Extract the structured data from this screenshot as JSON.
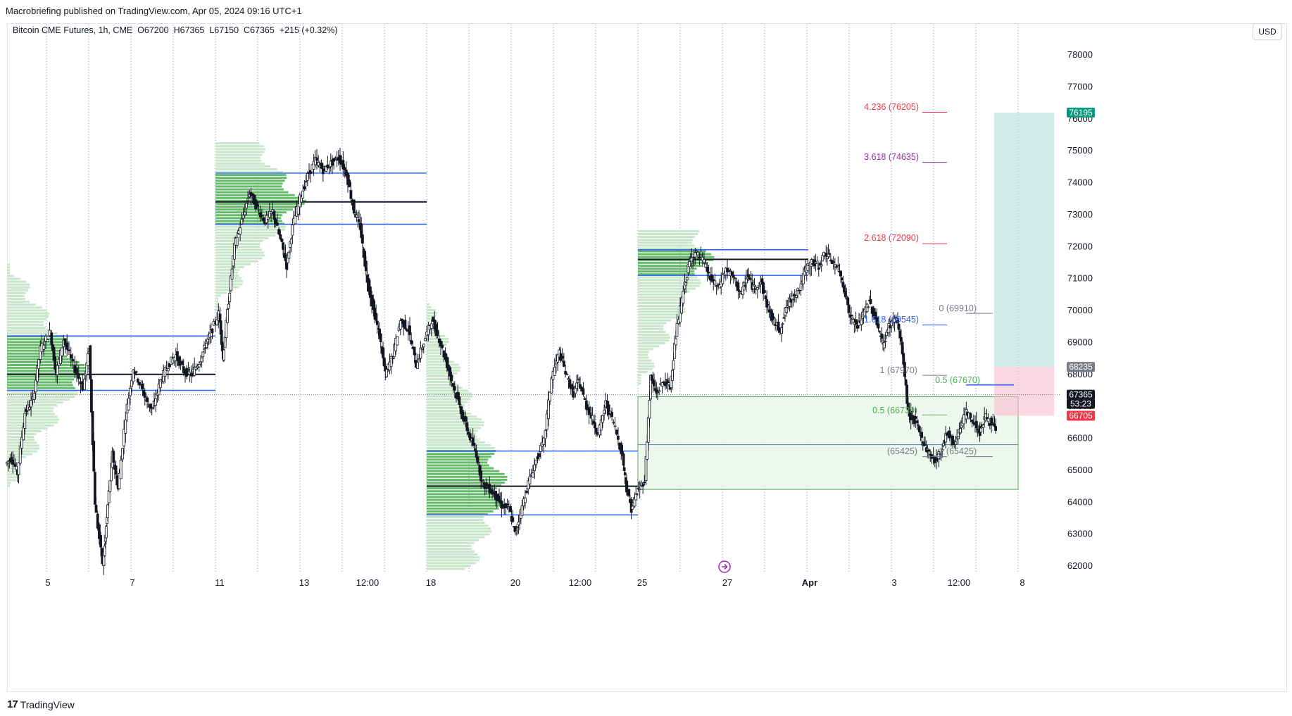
{
  "header": {
    "publisher": "Macrobriefing published on TradingView.com, Apr 05, 2024 09:16 UTC+1"
  },
  "legend": {
    "symbol": "Bitcoin CME Futures, 1h, CME",
    "open": "O67200",
    "high": "H67365",
    "low": "L67150",
    "close": "C67365",
    "change": "+215 (+0.32%)"
  },
  "currency_button": "USD",
  "footer": {
    "brand": "TradingView",
    "logo_mark": "17"
  },
  "colors": {
    "candle": "#131722",
    "vah_val": "#2962ff",
    "poc": "#131722",
    "profile_strong": "#66bb6a",
    "profile_weak": "#c8e6c9",
    "long_profit": "#b2dfdb",
    "long_loss": "#f8bbd0",
    "fib_red": "#f23645",
    "fib_purple": "#9c27b0",
    "fib_blue": "#2962ff",
    "fib_grey": "#787b86",
    "fib_green": "#4caf50"
  },
  "chart_data": {
    "type": "candlestick",
    "title": "",
    "xlabel": "",
    "ylabel": "",
    "ylim": [
      61800,
      79000
    ],
    "y_ticks": [
      62000,
      63000,
      64000,
      65000,
      66000,
      67000,
      68000,
      69000,
      70000,
      71000,
      72000,
      73000,
      74000,
      75000,
      76000,
      77000,
      78000
    ],
    "x_ticks": [
      "5",
      "7",
      "11",
      "13",
      "12:00",
      "18",
      "20",
      "12:00",
      "25",
      "27",
      "Apr",
      "3",
      "12:00",
      "8"
    ],
    "price_path": [
      [
        0,
        65200
      ],
      [
        0.3,
        65400
      ],
      [
        0.6,
        64900
      ],
      [
        1,
        66800
      ],
      [
        1.4,
        67200
      ],
      [
        1.8,
        68800
      ],
      [
        2.3,
        69300
      ],
      [
        2.6,
        68000
      ],
      [
        3,
        69100
      ],
      [
        3.5,
        68300
      ],
      [
        4,
        67600
      ],
      [
        4.3,
        68800
      ],
      [
        4.6,
        64000
      ],
      [
        5,
        62100
      ],
      [
        5.2,
        63500
      ],
      [
        5.5,
        65500
      ],
      [
        5.8,
        64400
      ],
      [
        6.2,
        66700
      ],
      [
        6.6,
        68200
      ],
      [
        7,
        67600
      ],
      [
        7.3,
        67100
      ],
      [
        7.6,
        66900
      ],
      [
        8,
        67800
      ],
      [
        8.4,
        68300
      ],
      [
        8.8,
        68600
      ],
      [
        9.2,
        68100
      ],
      [
        9.6,
        68000
      ],
      [
        10,
        68400
      ],
      [
        10.3,
        68900
      ],
      [
        10.6,
        69300
      ],
      [
        11,
        69900
      ],
      [
        11.2,
        68500
      ],
      [
        11.5,
        70300
      ],
      [
        11.8,
        72000
      ],
      [
        12.2,
        72800
      ],
      [
        12.6,
        73700
      ],
      [
        13,
        73200
      ],
      [
        13.4,
        72800
      ],
      [
        13.8,
        73100
      ],
      [
        14.2,
        72200
      ],
      [
        14.5,
        71400
      ],
      [
        14.8,
        72600
      ],
      [
        15.2,
        73500
      ],
      [
        15.6,
        74200
      ],
      [
        16,
        74700
      ],
      [
        16.4,
        74400
      ],
      [
        16.8,
        74600
      ],
      [
        17.2,
        74800
      ],
      [
        17.6,
        74300
      ],
      [
        18,
        73100
      ],
      [
        18.3,
        72600
      ],
      [
        18.6,
        71200
      ],
      [
        19,
        70000
      ],
      [
        19.3,
        69200
      ],
      [
        19.6,
        68000
      ],
      [
        20,
        68600
      ],
      [
        20.4,
        69700
      ],
      [
        20.8,
        69400
      ],
      [
        21.2,
        68300
      ],
      [
        21.6,
        69000
      ],
      [
        22,
        69700
      ],
      [
        22.4,
        69100
      ],
      [
        22.8,
        68300
      ],
      [
        23.2,
        67500
      ],
      [
        23.6,
        66700
      ],
      [
        24,
        66000
      ],
      [
        24.3,
        65500
      ],
      [
        24.6,
        64600
      ],
      [
        25,
        64400
      ],
      [
        25.3,
        64200
      ],
      [
        25.6,
        63900
      ],
      [
        26,
        63800
      ],
      [
        26.3,
        63000
      ],
      [
        26.6,
        63700
      ],
      [
        27,
        64600
      ],
      [
        27.4,
        65300
      ],
      [
        27.8,
        65900
      ],
      [
        28.2,
        67900
      ],
      [
        28.6,
        68700
      ],
      [
        29,
        67900
      ],
      [
        29.3,
        67400
      ],
      [
        29.6,
        67800
      ],
      [
        30,
        67000
      ],
      [
        30.3,
        66600
      ],
      [
        30.6,
        66100
      ],
      [
        31,
        67100
      ],
      [
        31.4,
        66500
      ],
      [
        31.8,
        65600
      ],
      [
        32,
        64600
      ],
      [
        32.3,
        63800
      ],
      [
        32.6,
        64300
      ],
      [
        33,
        64700
      ],
      [
        33.3,
        67900
      ],
      [
        33.6,
        67400
      ],
      [
        34,
        67800
      ],
      [
        34.3,
        67600
      ],
      [
        34.6,
        69200
      ],
      [
        35,
        70600
      ],
      [
        35.3,
        71500
      ],
      [
        35.6,
        71800
      ],
      [
        36,
        71600
      ],
      [
        36.4,
        71000
      ],
      [
        36.8,
        70700
      ],
      [
        37.2,
        71300
      ],
      [
        37.6,
        71000
      ],
      [
        38,
        70500
      ],
      [
        38.3,
        71100
      ],
      [
        38.6,
        70700
      ],
      [
        39,
        70900
      ],
      [
        39.3,
        70200
      ],
      [
        39.6,
        69700
      ],
      [
        40,
        69400
      ],
      [
        40.3,
        70100
      ],
      [
        40.6,
        70400
      ],
      [
        41,
        70700
      ],
      [
        41.3,
        71300
      ],
      [
        41.6,
        71500
      ],
      [
        42,
        71400
      ],
      [
        42.3,
        71800
      ],
      [
        42.6,
        71600
      ],
      [
        43,
        71300
      ],
      [
        43.3,
        70700
      ],
      [
        43.6,
        69800
      ],
      [
        44,
        69500
      ],
      [
        44.3,
        69900
      ],
      [
        44.6,
        70300
      ],
      [
        45,
        69600
      ],
      [
        45.3,
        68900
      ],
      [
        45.6,
        69500
      ],
      [
        46,
        69800
      ],
      [
        46.3,
        68700
      ],
      [
        46.6,
        66800
      ],
      [
        47,
        66500
      ],
      [
        47.3,
        66000
      ],
      [
        47.6,
        65600
      ],
      [
        48,
        65300
      ],
      [
        48.3,
        65600
      ],
      [
        48.6,
        66200
      ],
      [
        49,
        65800
      ],
      [
        49.3,
        66400
      ],
      [
        49.6,
        66800
      ],
      [
        50,
        66500
      ],
      [
        50.3,
        66200
      ],
      [
        50.6,
        66700
      ],
      [
        51,
        66400
      ],
      [
        51.3,
        65900
      ],
      [
        51.6,
        66100
      ],
      [
        52,
        66600
      ],
      [
        52.3,
        67300
      ],
      [
        52.6,
        68000
      ],
      [
        53,
        68700
      ],
      [
        53.3,
        68400
      ],
      [
        53.6,
        68100
      ],
      [
        54,
        67700
      ],
      [
        54.3,
        67400
      ]
    ],
    "volume_profiles": [
      {
        "start_day": 0,
        "end_day": 11,
        "poc": 68000,
        "vah": 69200,
        "val": 67500,
        "range": [
          64500,
          71500
        ]
      },
      {
        "start_day": 11,
        "end_day": 18,
        "poc": 73400,
        "vah": 74300,
        "val": 72700,
        "range": [
          70000,
          75300
        ]
      },
      {
        "start_day": 18,
        "end_day": 25,
        "poc": 64500,
        "vah": 65600,
        "val": 63600,
        "range": [
          61900,
          70200
        ]
      },
      {
        "start_day": 25,
        "end_day": 32,
        "poc": 71600,
        "vah": 71900,
        "val": 71100,
        "range": [
          67700,
          72500
        ]
      }
    ],
    "fibonacci": [
      {
        "ratio": "4.236",
        "value": 76205,
        "label": "4.236 (76205)",
        "color": "#f23645"
      },
      {
        "ratio": "3.618",
        "value": 74635,
        "label": "3.618 (74635)",
        "color": "#9c27b0"
      },
      {
        "ratio": "2.618",
        "value": 72090,
        "label": "2.618 (72090)",
        "color": "#f23645"
      },
      {
        "ratio": "1.618",
        "value": 69545,
        "label": "1.618 (69545)",
        "color": "#2962ff"
      },
      {
        "ratio": "1",
        "value": 67970,
        "label": "1 (67970)",
        "color": "#787b86"
      },
      {
        "ratio": "0",
        "value": 69910,
        "label": "0 (69910)",
        "color": "#787b86"
      },
      {
        "ratio": "0.5",
        "value": 67670,
        "label": "0.5 (67670)",
        "color": "#4caf50"
      },
      {
        "ratio": "0.5",
        "value": 66730,
        "label": "0.5 (66730)",
        "color": "#4caf50"
      },
      {
        "ratio": "1",
        "value": 65425,
        "label": "1 (65425)",
        "color": "#787b86"
      },
      {
        "ratio": "",
        "value": 65425,
        "label": "(65425)",
        "color": "#787b86"
      }
    ],
    "range_box": {
      "top": 67300,
      "bottom": 64400,
      "mid": 65800
    },
    "long_position": {
      "entry": 68235,
      "target": 76195,
      "stop": 66705
    },
    "price_tags": [
      {
        "label": "76195",
        "color": "#089981"
      },
      {
        "label": "68235",
        "color": "#787b86"
      },
      {
        "label": "67365",
        "color": "#131722"
      },
      {
        "label": "53:23",
        "color": "#131722"
      },
      {
        "label": "66705",
        "color": "#f23645"
      }
    ],
    "last_price": 67365,
    "countdown": "53:23"
  }
}
